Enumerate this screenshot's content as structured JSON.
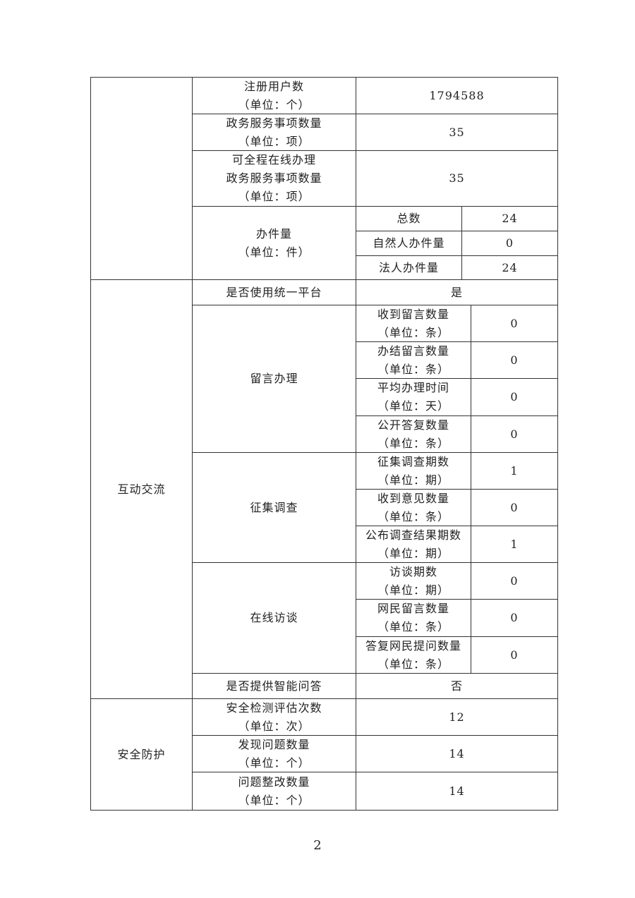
{
  "sections": {
    "s1": "",
    "interaction": "互动交流",
    "security": "安全防护"
  },
  "rows": {
    "registered_users": {
      "label": "注册用户数",
      "unit": "（单位：个）",
      "value": "1794588"
    },
    "service_items": {
      "label": "政务服务事项数量",
      "unit": "（单位：项）",
      "value": "35"
    },
    "online_items": {
      "label": "可全程在线办理",
      "label2": "政务服务事项数量",
      "unit": "（单位：项）",
      "value": "35"
    },
    "cases": {
      "label": "办件量",
      "unit": "（单位：件）",
      "sub": [
        {
          "label": "总数",
          "value": "24"
        },
        {
          "label": "自然人办件量",
          "value": "0"
        },
        {
          "label": "法人办件量",
          "value": "24"
        }
      ]
    },
    "unified_platform": {
      "label": "是否使用统一平台",
      "value": "是"
    },
    "messages": {
      "label": "留言办理",
      "sub": [
        {
          "label": "收到留言数量",
          "unit": "（单位：条）",
          "value": "0"
        },
        {
          "label": "办结留言数量",
          "unit": "（单位：条）",
          "value": "0"
        },
        {
          "label": "平均办理时间",
          "unit": "（单位：天）",
          "value": "0"
        },
        {
          "label": "公开答复数量",
          "unit": "（单位：条）",
          "value": "0"
        }
      ]
    },
    "survey": {
      "label": "征集调查",
      "sub": [
        {
          "label": "征集调查期数",
          "unit": "（单位：期）",
          "value": "1"
        },
        {
          "label": "收到意见数量",
          "unit": "（单位：条）",
          "value": "0"
        },
        {
          "label": "公布调查结果期数",
          "unit": "（单位：期）",
          "value": "1"
        }
      ]
    },
    "interview": {
      "label": "在线访谈",
      "sub": [
        {
          "label": "访谈期数",
          "unit": "（单位：期）",
          "value": "0"
        },
        {
          "label": "网民留言数量",
          "unit": "（单位：条）",
          "value": "0"
        },
        {
          "label": "答复网民提问数量",
          "unit": "（单位：条）",
          "value": "0"
        }
      ]
    },
    "smart_qa": {
      "label": "是否提供智能问答",
      "value": "否"
    },
    "security_checks": {
      "label": "安全检测评估次数",
      "unit": "（单位：次）",
      "value": "12"
    },
    "issues_found": {
      "label": "发现问题数量",
      "unit": "（单位：个）",
      "value": "14"
    },
    "issues_fixed": {
      "label": "问题整改数量",
      "unit": "（单位：个）",
      "value": "14"
    }
  },
  "page_number": "2"
}
